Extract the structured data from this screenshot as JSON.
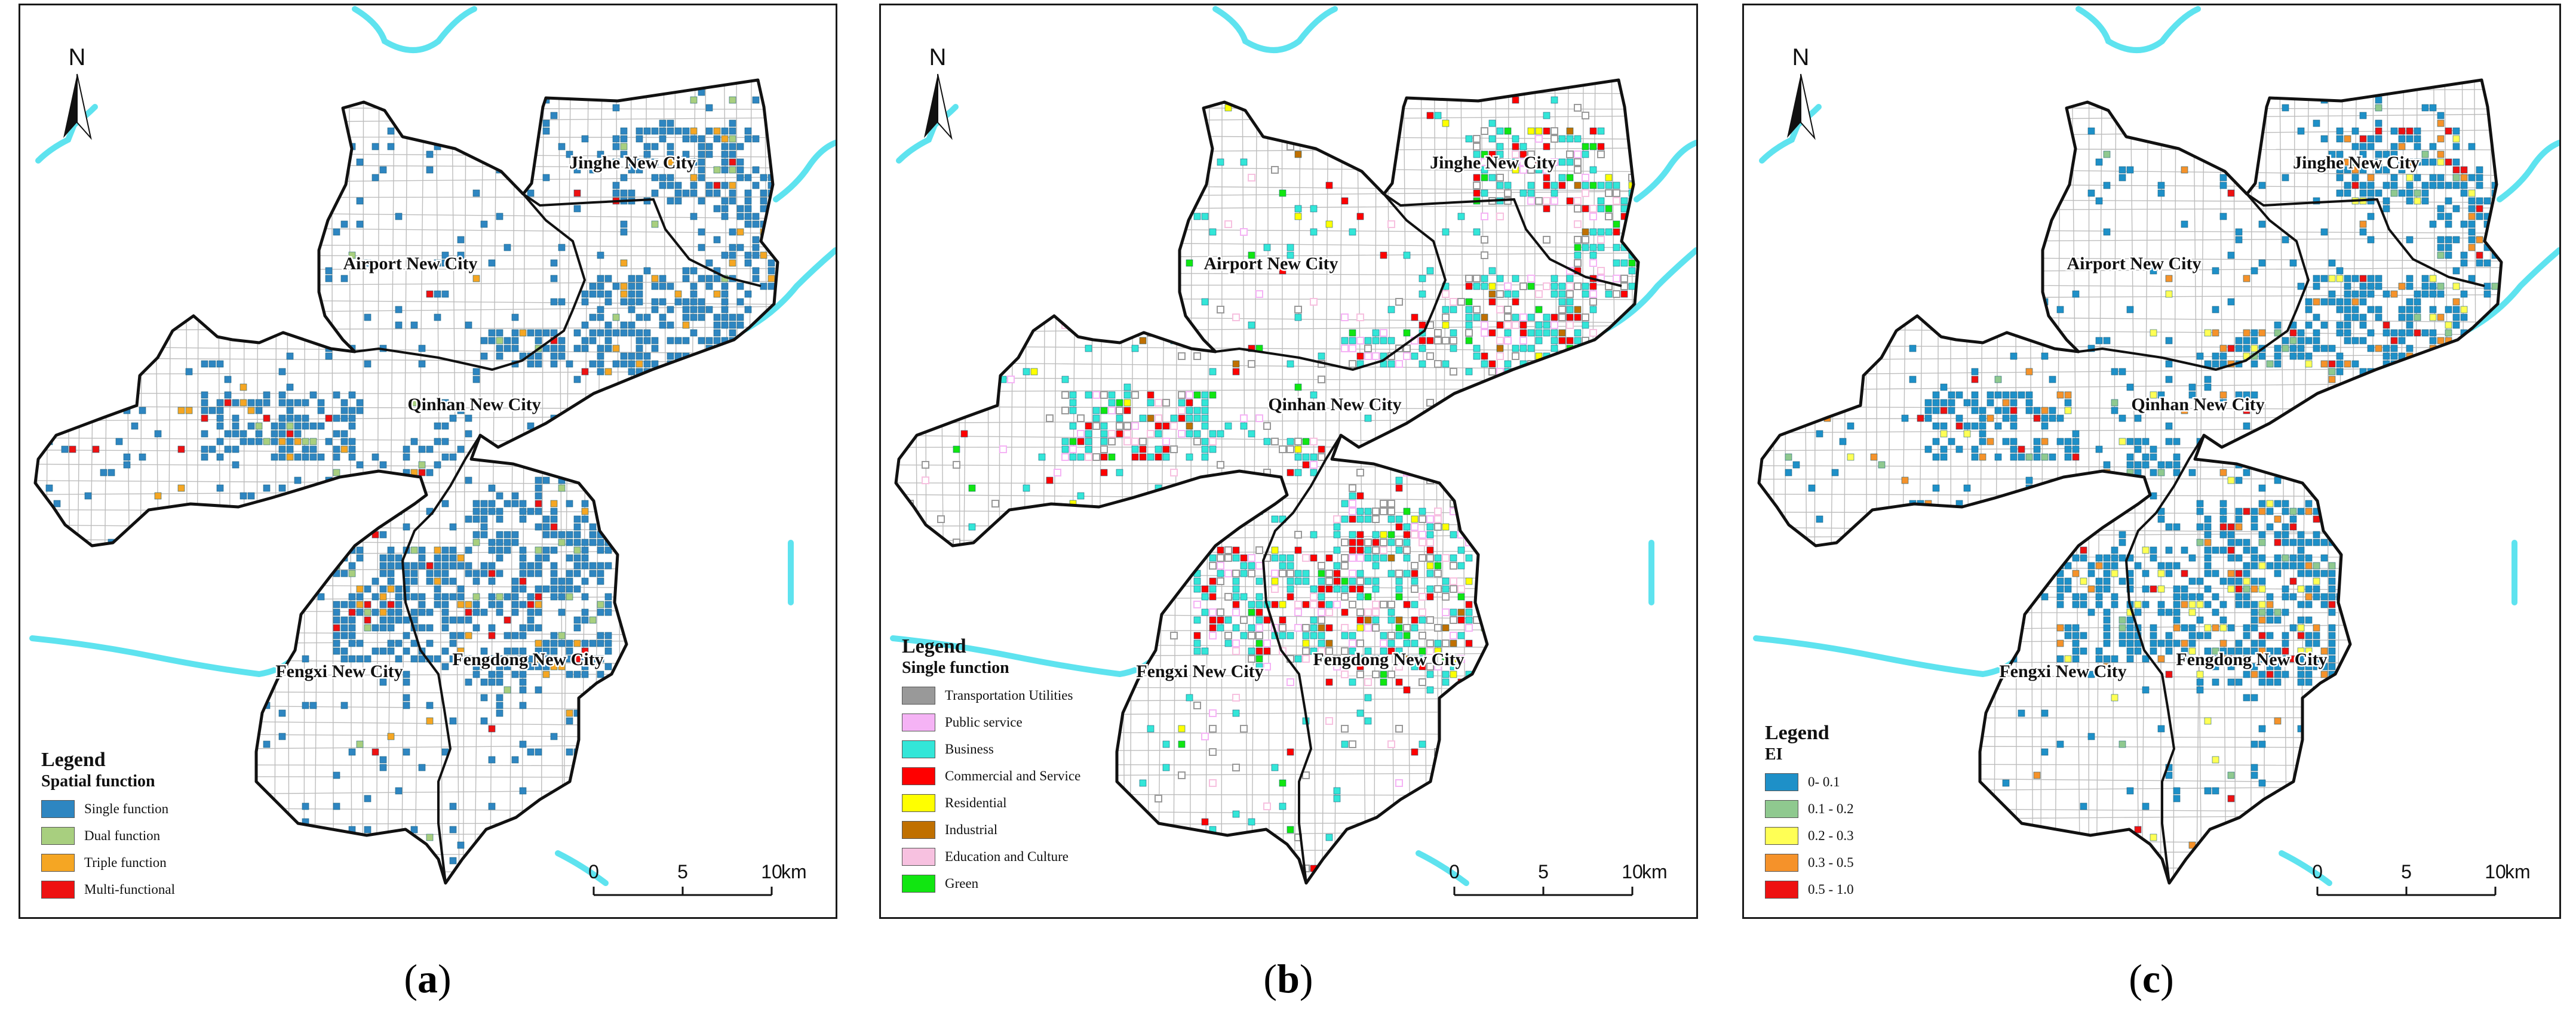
{
  "north_label": "N",
  "districts": {
    "jinghe": "Jinghe New City",
    "airport": "Airport New City",
    "qinhan": "Qinhan New City",
    "fengxi": "Fengxi New City",
    "fengdong": "Fengdong New City"
  },
  "scale": {
    "ticks": [
      "0",
      "5",
      "10"
    ],
    "unit": "km"
  },
  "panels": [
    {
      "caption": {
        "open": "(",
        "letter": "a",
        "close": ")"
      },
      "legend": {
        "title": "Legend",
        "subtitle": "Spatial function",
        "items": [
          {
            "label": "Single function",
            "color": "#2e86c1"
          },
          {
            "label": "Dual function",
            "color": "#a8cf7f"
          },
          {
            "label": "Triple function",
            "color": "#f5a623"
          },
          {
            "label": "Multi-functional",
            "color": "#ee1111"
          }
        ]
      }
    },
    {
      "caption": {
        "open": "(",
        "letter": "b",
        "close": ")"
      },
      "legend": {
        "title": "Legend",
        "subtitle": "Single function",
        "items": [
          {
            "label": "Transportation Utilities",
            "color": "#999999"
          },
          {
            "label": "Public service",
            "color": "#f5b3f5"
          },
          {
            "label": "Business",
            "color": "#33e6d8"
          },
          {
            "label": "Commercial and Service",
            "color": "#ff0000"
          },
          {
            "label": "Residential",
            "color": "#ffff00"
          },
          {
            "label": "Industrial",
            "color": "#c07000"
          },
          {
            "label": "Education and Culture",
            "color": "#f7c1e0"
          },
          {
            "label": "Green",
            "color": "#11e611"
          }
        ]
      }
    },
    {
      "caption": {
        "open": "(",
        "letter": "c",
        "close": ")"
      },
      "legend": {
        "title": "Legend",
        "subtitle": "EI",
        "items": [
          {
            "label": "0- 0.1",
            "color": "#1e90c8"
          },
          {
            "label": "0.1 - 0.2",
            "color": "#8fc98f"
          },
          {
            "label": "0.2 - 0.3",
            "color": "#ffff55"
          },
          {
            "label": "0.3 - 0.5",
            "color": "#f5922a"
          },
          {
            "label": "0.5 - 1.0",
            "color": "#ee1111"
          }
        ]
      }
    }
  ],
  "colors": {
    "river": "#5ee3ef",
    "roads": "#bdbdbd",
    "boundary": "#111111"
  }
}
